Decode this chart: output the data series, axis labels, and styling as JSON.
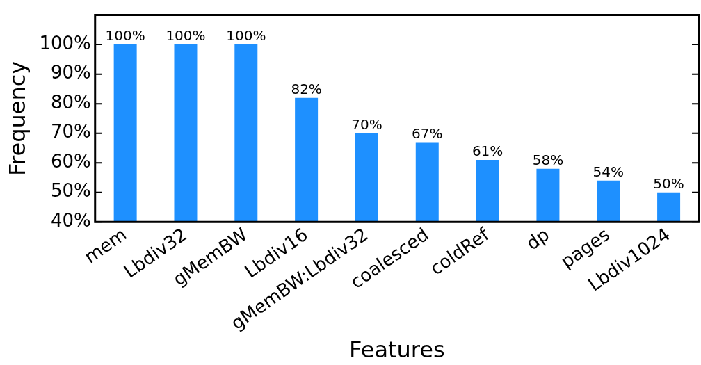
{
  "chart_data": {
    "type": "bar",
    "xlabel": "Features",
    "ylabel": "Frequency",
    "categories": [
      "mem",
      "Lbdiv32",
      "gMemBW",
      "Lbdiv16",
      "gMemBW:Lbdiv32",
      "coalesced",
      "coldRef",
      "dp",
      "pages",
      "Lbdiv1024"
    ],
    "values": [
      100,
      100,
      100,
      82,
      70,
      67,
      61,
      58,
      54,
      50
    ],
    "value_labels": [
      "100%",
      "100%",
      "100%",
      "82%",
      "70%",
      "67%",
      "61%",
      "58%",
      "54%",
      "50%"
    ],
    "color": "#1e90ff",
    "ylim": [
      40,
      110
    ],
    "yticks": [
      {
        "value": 40,
        "label": "40%"
      },
      {
        "value": 50,
        "label": "50%"
      },
      {
        "value": 60,
        "label": "60%"
      },
      {
        "value": 70,
        "label": "70%"
      },
      {
        "value": 80,
        "label": "80%"
      },
      {
        "value": 90,
        "label": "90%"
      },
      {
        "value": 100,
        "label": "100%"
      }
    ],
    "grid": false,
    "legend": false
  }
}
